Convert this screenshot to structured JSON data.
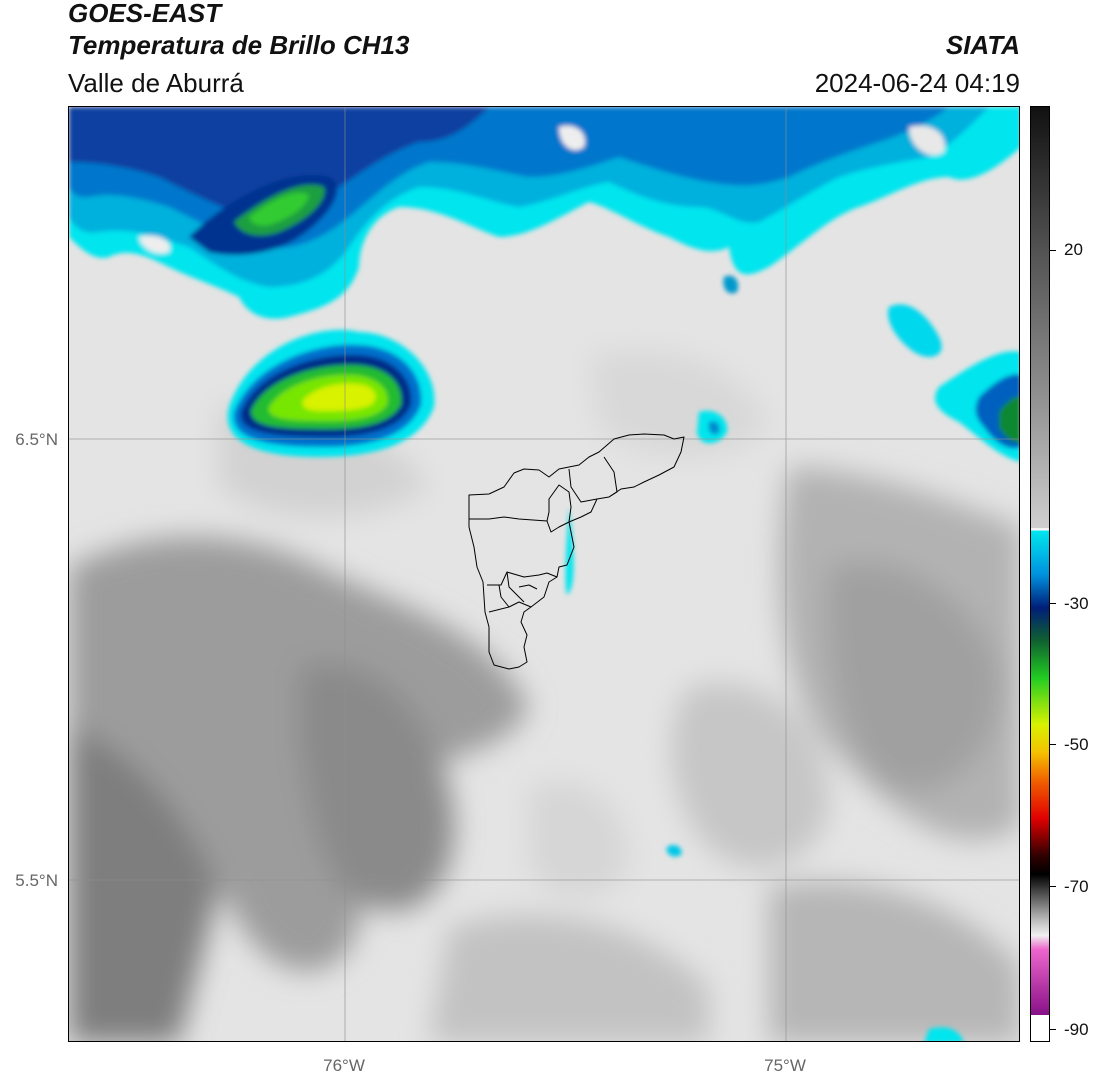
{
  "header": {
    "title": "GOES-EAST",
    "product": "Temperatura de Brillo CH13",
    "region": "Valle de Aburrá",
    "organization": "SIATA",
    "timestamp": "2024-06-24 04:19"
  },
  "map": {
    "lat_labels": [
      "6.5°N",
      "5.5°N"
    ],
    "lon_labels": [
      "76°W",
      "75°W"
    ],
    "grid": true
  },
  "colorbar": {
    "tick_labels": [
      "20",
      "-30",
      "-50",
      "-70",
      "-90"
    ],
    "range": [
      -90,
      40
    ],
    "colors": {
      "warm_gray": "#7a7a7a",
      "light_gray": "#e8e8e8",
      "cyan": "#00e5ee",
      "blue": "#0066cc",
      "navy": "#001e78",
      "green": "#22cc22",
      "yellow": "#f5f500",
      "red": "#e00000",
      "black": "#111111",
      "magenta": "#aa2299"
    }
  }
}
